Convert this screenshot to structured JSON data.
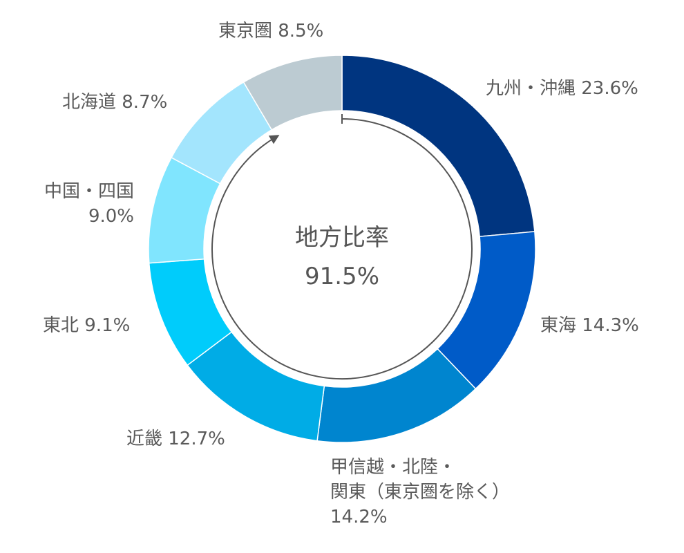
{
  "chart_data": {
    "type": "pie",
    "variant": "donut",
    "center_title": "地方比率",
    "center_value": "91.5%",
    "slices": [
      {
        "label": "九州・沖縄",
        "value": 23.6,
        "display": "九州・沖縄 23.6%",
        "color": "#003580"
      },
      {
        "label": "東海",
        "value": 14.3,
        "display": "東海 14.3%",
        "color": "#005bc8"
      },
      {
        "label": "甲信越・北陸・関東（東京圏を除く）",
        "value": 14.2,
        "display_lines": [
          "甲信越・北陸・",
          "関東（東京圏を除く）",
          "14.2%"
        ],
        "color": "#0085cf"
      },
      {
        "label": "近畿",
        "value": 12.7,
        "display": "近畿 12.7%",
        "color": "#00ace6"
      },
      {
        "label": "東北",
        "value": 9.1,
        "display": "東北 9.1%",
        "color": "#00ccfb"
      },
      {
        "label": "中国・四国",
        "value": 9.0,
        "display_lines": [
          "中国・四国",
          "9.0%"
        ],
        "color": "#80e5fe"
      },
      {
        "label": "北海道",
        "value": 8.7,
        "display": "北海道 8.7%",
        "color": "#a3e5fd"
      },
      {
        "label": "東京圏",
        "value": 8.5,
        "display": "東京圏 8.5%",
        "color": "#bccbd2"
      }
    ]
  }
}
